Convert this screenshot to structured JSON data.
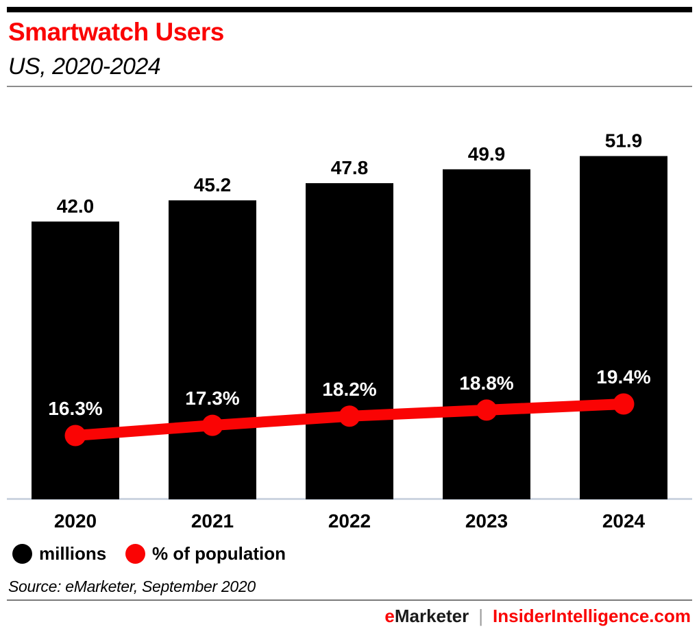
{
  "header": {
    "title": "Smartwatch Users",
    "subtitle": "US, 2020-2024"
  },
  "chart_data": {
    "type": "bar",
    "subtype": "bar with overlaid line",
    "title": "Smartwatch Users",
    "subtitle": "US, 2020-2024",
    "categories": [
      "2020",
      "2021",
      "2022",
      "2023",
      "2024"
    ],
    "series": [
      {
        "name": "millions",
        "type": "bar",
        "color": "#000000",
        "values": [
          42.0,
          45.2,
          47.8,
          49.9,
          51.9
        ],
        "labels": [
          "42.0",
          "45.2",
          "47.8",
          "49.9",
          "51.9"
        ]
      },
      {
        "name": "% of population",
        "type": "line",
        "color": "#fa0404",
        "values": [
          16.3,
          17.3,
          18.2,
          18.8,
          19.4
        ],
        "labels": [
          "16.3%",
          "17.3%",
          "18.2%",
          "18.8%",
          "19.4%"
        ]
      }
    ],
    "xlabel": "",
    "ylabel": "",
    "grid": false,
    "axes_ticks_shown": false,
    "value_labels": "bar values above bars in black; line values above points in white",
    "legend_position": "bottom-left"
  },
  "legend": {
    "items": [
      {
        "label": "millions",
        "color": "#000000"
      },
      {
        "label": "% of population",
        "color": "#fa0404"
      }
    ]
  },
  "source": "Source: eMarketer, September 2020",
  "footer": {
    "brand_first_letter": "e",
    "brand_rest": "Marketer",
    "separator": "|",
    "site": "InsiderIntelligence.com"
  },
  "colors": {
    "brand_red": "#fa0404",
    "bar_black": "#000000",
    "axis_line": "#ccd4e0",
    "header_divider": "#8c8c8c",
    "footer_divider": "#7a7a7a",
    "white_label": "#ffffff"
  }
}
